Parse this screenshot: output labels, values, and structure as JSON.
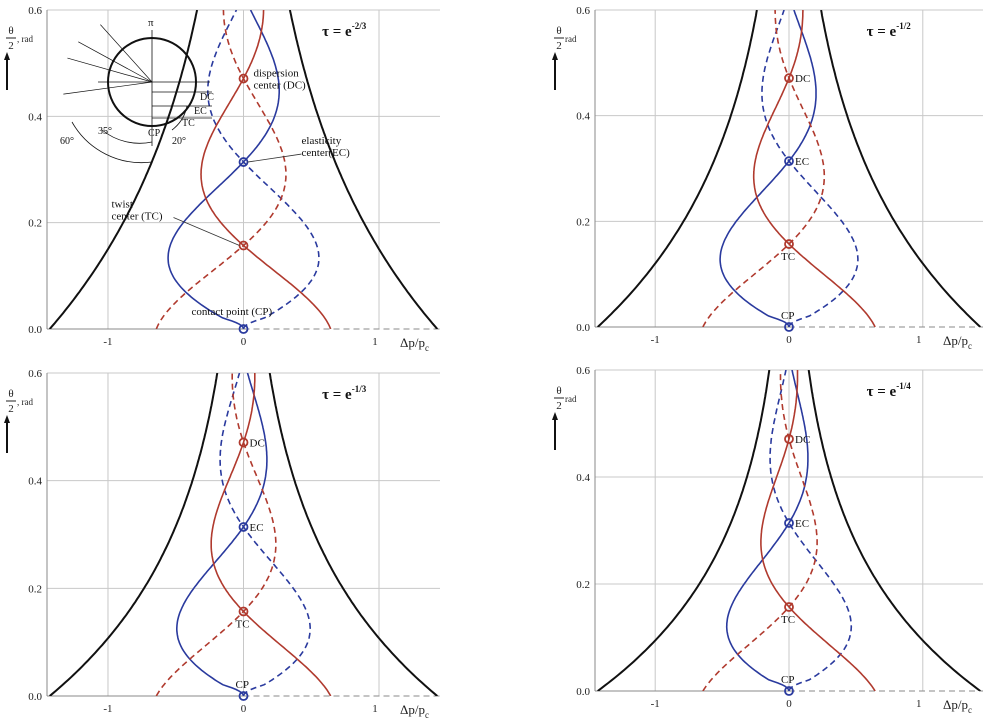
{
  "chart_data": [
    {
      "type": "line",
      "tau": "τ = e",
      "tau_exp": "-2/3",
      "ylabel": {
        "theta": "θ",
        "two": "2",
        "unit": ", rad"
      },
      "xlabel": {
        "main": "Δp/p",
        "sub": "c"
      },
      "xlim": [
        -1.45,
        1.45
      ],
      "ylim": [
        0,
        0.6
      ],
      "x_ticks": [
        "-1",
        "0",
        "1"
      ],
      "y_ticks": [
        "0.0",
        "0.2",
        "0.4",
        "0.6"
      ],
      "grid": true,
      "markers": [
        {
          "name": "dispersion center",
          "y": 0.471,
          "color": "#b03a2e"
        },
        {
          "name": "elasticity center",
          "y": 0.314,
          "color": "#2a3a9e"
        },
        {
          "name": "twist center",
          "y": 0.157,
          "color": "#b03a2e"
        },
        {
          "name": "contact point",
          "y": 0.0,
          "color": "#2a3a9e"
        }
      ],
      "annotations": {
        "dc": "dispersion\ncenter (DC)",
        "ec": "elasticity\ncenter(EC)",
        "tc": "twist\ncenter (TC)",
        "cp": "contact point (CP)"
      },
      "inset": {
        "pi": "π",
        "angles": [
          "60°",
          "35°",
          "20°"
        ],
        "labels": [
          "DC",
          "EC",
          "TC",
          "CP"
        ]
      }
    },
    {
      "type": "line",
      "tau": "τ = e",
      "tau_exp": "-1/2",
      "ylabel": {
        "theta": "θ",
        "two": "2",
        "unit": " rad"
      },
      "xlabel": {
        "main": "Δp/p",
        "sub": "c"
      },
      "xlim": [
        -1.45,
        1.45
      ],
      "ylim": [
        0,
        0.6
      ],
      "x_ticks": [
        "-1",
        "0",
        "1"
      ],
      "y_ticks": [
        "0.0",
        "0.2",
        "0.4",
        "0.6"
      ],
      "grid": true,
      "markers": [
        {
          "name": "DC",
          "y": 0.471,
          "color": "#b03a2e"
        },
        {
          "name": "EC",
          "y": 0.314,
          "color": "#2a3a9e"
        },
        {
          "name": "TC",
          "y": 0.157,
          "color": "#b03a2e"
        },
        {
          "name": "CP",
          "y": 0.0,
          "color": "#2a3a9e"
        }
      ]
    },
    {
      "type": "line",
      "tau": "τ = e",
      "tau_exp": "-1/3",
      "ylabel": {
        "theta": "θ",
        "two": "2",
        "unit": ", rad"
      },
      "xlabel": {
        "main": "Δp/p",
        "sub": "c"
      },
      "xlim": [
        -1.45,
        1.45
      ],
      "ylim": [
        0,
        0.6
      ],
      "x_ticks": [
        "-1",
        "0",
        "1"
      ],
      "y_ticks": [
        "0.0",
        "0.2",
        "0.4",
        "0.6"
      ],
      "grid": true,
      "markers": [
        {
          "name": "DC",
          "y": 0.471,
          "color": "#b03a2e"
        },
        {
          "name": "EC",
          "y": 0.314,
          "color": "#2a3a9e"
        },
        {
          "name": "TC",
          "y": 0.157,
          "color": "#b03a2e"
        },
        {
          "name": "CP",
          "y": 0.0,
          "color": "#2a3a9e"
        }
      ]
    },
    {
      "type": "line",
      "tau": "τ = e",
      "tau_exp": "-1/4",
      "ylabel": {
        "theta": "θ",
        "two": "2",
        "unit": " rad"
      },
      "xlabel": {
        "main": "Δp/p",
        "sub": "c"
      },
      "xlim": [
        -1.45,
        1.45
      ],
      "ylim": [
        0,
        0.6
      ],
      "x_ticks": [
        "-1",
        "0",
        "1"
      ],
      "y_ticks": [
        "0.0",
        "0.2",
        "0.4",
        "0.6"
      ],
      "grid": true,
      "markers": [
        {
          "name": "DC",
          "y": 0.471,
          "color": "#b03a2e"
        },
        {
          "name": "EC",
          "y": 0.314,
          "color": "#2a3a9e"
        },
        {
          "name": "TC",
          "y": 0.157,
          "color": "#b03a2e"
        },
        {
          "name": "CP",
          "y": 0.0,
          "color": "#2a3a9e"
        }
      ]
    }
  ],
  "colors": {
    "envelope": "#111111",
    "red": "#b03a2e",
    "blue": "#2a3a9e",
    "grid": "#c8c8c8",
    "axis": "#888888"
  }
}
